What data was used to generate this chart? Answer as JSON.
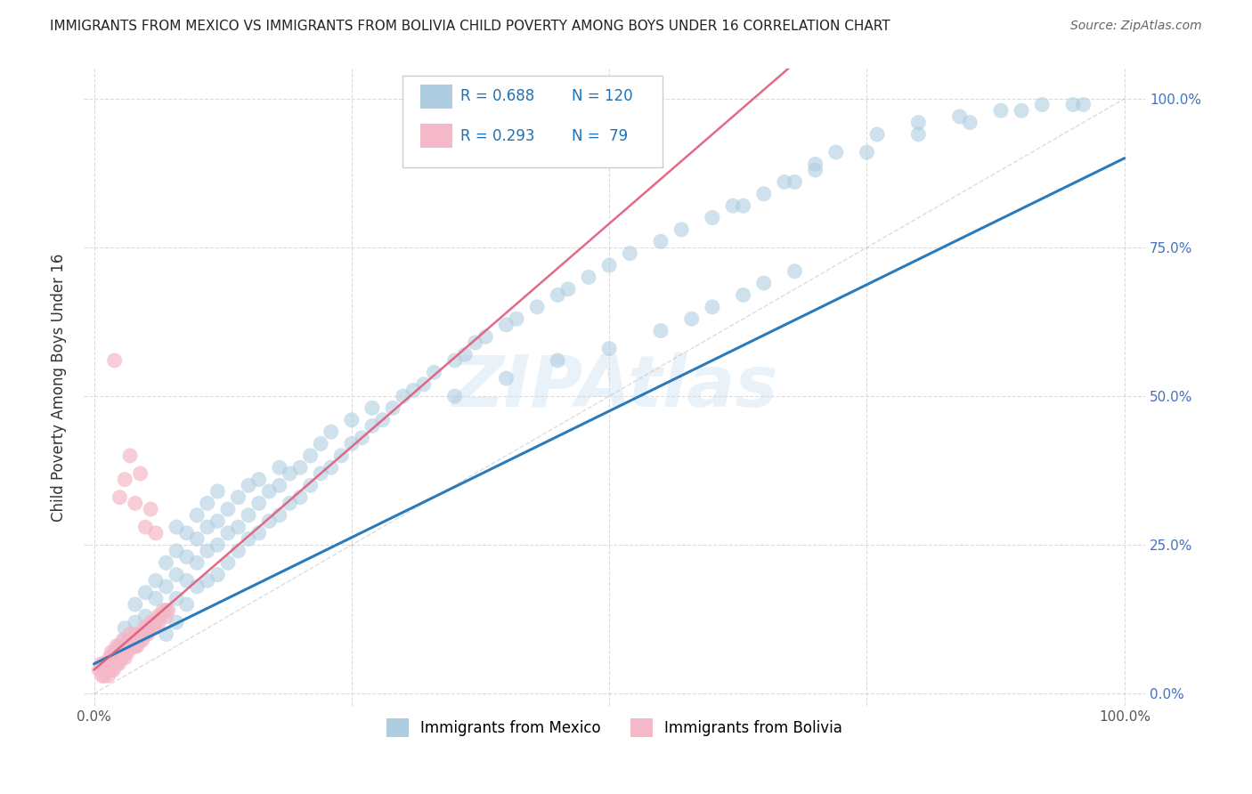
{
  "title": "IMMIGRANTS FROM MEXICO VS IMMIGRANTS FROM BOLIVIA CHILD POVERTY AMONG BOYS UNDER 16 CORRELATION CHART",
  "source": "Source: ZipAtlas.com",
  "ylabel": "Child Poverty Among Boys Under 16",
  "watermark": "ZIPAtlas",
  "mexico_R": 0.688,
  "mexico_N": 120,
  "bolivia_R": 0.293,
  "bolivia_N": 79,
  "mexico_color": "#aecde0",
  "bolivia_color": "#f4b8c8",
  "mexico_line_color": "#2b7bba",
  "bolivia_line_color": "#e05a7a",
  "grid_color": "#cccccc",
  "background_color": "#ffffff",
  "mexico_scatter_x": [
    0.02,
    0.03,
    0.03,
    0.04,
    0.04,
    0.04,
    0.05,
    0.05,
    0.05,
    0.06,
    0.06,
    0.06,
    0.07,
    0.07,
    0.07,
    0.07,
    0.08,
    0.08,
    0.08,
    0.08,
    0.08,
    0.09,
    0.09,
    0.09,
    0.09,
    0.1,
    0.1,
    0.1,
    0.1,
    0.11,
    0.11,
    0.11,
    0.11,
    0.12,
    0.12,
    0.12,
    0.12,
    0.13,
    0.13,
    0.13,
    0.14,
    0.14,
    0.14,
    0.15,
    0.15,
    0.15,
    0.16,
    0.16,
    0.16,
    0.17,
    0.17,
    0.18,
    0.18,
    0.18,
    0.19,
    0.19,
    0.2,
    0.2,
    0.21,
    0.21,
    0.22,
    0.22,
    0.23,
    0.23,
    0.24,
    0.25,
    0.25,
    0.26,
    0.27,
    0.27,
    0.28,
    0.29,
    0.3,
    0.31,
    0.32,
    0.33,
    0.35,
    0.36,
    0.37,
    0.38,
    0.4,
    0.41,
    0.43,
    0.45,
    0.46,
    0.48,
    0.5,
    0.52,
    0.55,
    0.57,
    0.6,
    0.63,
    0.65,
    0.68,
    0.7,
    0.75,
    0.8,
    0.85,
    0.9,
    0.95,
    0.62,
    0.67,
    0.7,
    0.72,
    0.76,
    0.8,
    0.84,
    0.88,
    0.92,
    0.96,
    0.35,
    0.4,
    0.45,
    0.5,
    0.55,
    0.58,
    0.6,
    0.63,
    0.65,
    0.68
  ],
  "mexico_scatter_y": [
    0.07,
    0.09,
    0.11,
    0.08,
    0.12,
    0.15,
    0.1,
    0.13,
    0.17,
    0.12,
    0.16,
    0.19,
    0.1,
    0.14,
    0.18,
    0.22,
    0.12,
    0.16,
    0.2,
    0.24,
    0.28,
    0.15,
    0.19,
    0.23,
    0.27,
    0.18,
    0.22,
    0.26,
    0.3,
    0.19,
    0.24,
    0.28,
    0.32,
    0.2,
    0.25,
    0.29,
    0.34,
    0.22,
    0.27,
    0.31,
    0.24,
    0.28,
    0.33,
    0.26,
    0.3,
    0.35,
    0.27,
    0.32,
    0.36,
    0.29,
    0.34,
    0.3,
    0.35,
    0.38,
    0.32,
    0.37,
    0.33,
    0.38,
    0.35,
    0.4,
    0.37,
    0.42,
    0.38,
    0.44,
    0.4,
    0.42,
    0.46,
    0.43,
    0.45,
    0.48,
    0.46,
    0.48,
    0.5,
    0.51,
    0.52,
    0.54,
    0.56,
    0.57,
    0.59,
    0.6,
    0.62,
    0.63,
    0.65,
    0.67,
    0.68,
    0.7,
    0.72,
    0.74,
    0.76,
    0.78,
    0.8,
    0.82,
    0.84,
    0.86,
    0.88,
    0.91,
    0.94,
    0.96,
    0.98,
    0.99,
    0.82,
    0.86,
    0.89,
    0.91,
    0.94,
    0.96,
    0.97,
    0.98,
    0.99,
    0.99,
    0.5,
    0.53,
    0.56,
    0.58,
    0.61,
    0.63,
    0.65,
    0.67,
    0.69,
    0.71
  ],
  "bolivia_scatter_x": [
    0.005,
    0.007,
    0.008,
    0.009,
    0.01,
    0.01,
    0.012,
    0.013,
    0.014,
    0.015,
    0.015,
    0.016,
    0.017,
    0.017,
    0.018,
    0.019,
    0.02,
    0.02,
    0.021,
    0.022,
    0.022,
    0.023,
    0.023,
    0.024,
    0.024,
    0.025,
    0.025,
    0.026,
    0.027,
    0.028,
    0.028,
    0.029,
    0.03,
    0.03,
    0.031,
    0.032,
    0.033,
    0.034,
    0.035,
    0.035,
    0.036,
    0.037,
    0.038,
    0.039,
    0.04,
    0.04,
    0.041,
    0.042,
    0.043,
    0.044,
    0.045,
    0.046,
    0.047,
    0.048,
    0.049,
    0.05,
    0.051,
    0.052,
    0.053,
    0.055,
    0.056,
    0.057,
    0.058,
    0.06,
    0.062,
    0.063,
    0.065,
    0.067,
    0.07,
    0.072,
    0.02,
    0.025,
    0.03,
    0.035,
    0.04,
    0.045,
    0.05,
    0.055,
    0.06
  ],
  "bolivia_scatter_y": [
    0.04,
    0.05,
    0.03,
    0.04,
    0.03,
    0.05,
    0.04,
    0.05,
    0.03,
    0.04,
    0.06,
    0.05,
    0.04,
    0.07,
    0.05,
    0.04,
    0.05,
    0.07,
    0.06,
    0.05,
    0.08,
    0.06,
    0.07,
    0.05,
    0.08,
    0.06,
    0.07,
    0.08,
    0.06,
    0.07,
    0.09,
    0.07,
    0.06,
    0.08,
    0.07,
    0.08,
    0.07,
    0.09,
    0.08,
    0.1,
    0.08,
    0.09,
    0.08,
    0.09,
    0.08,
    0.1,
    0.09,
    0.08,
    0.09,
    0.1,
    0.09,
    0.1,
    0.09,
    0.1,
    0.11,
    0.1,
    0.11,
    0.1,
    0.11,
    0.12,
    0.11,
    0.12,
    0.11,
    0.12,
    0.13,
    0.12,
    0.13,
    0.14,
    0.13,
    0.14,
    0.56,
    0.33,
    0.36,
    0.4,
    0.32,
    0.37,
    0.28,
    0.31,
    0.27
  ],
  "ytick_labels_right": [
    "0.0%",
    "25.0%",
    "50.0%",
    "75.0%",
    "100.0%"
  ],
  "ytick_values": [
    0.0,
    0.25,
    0.5,
    0.75,
    1.0
  ],
  "xtick_labels": [
    "0.0%",
    "",
    "",
    "",
    "100.0%"
  ],
  "xtick_values": [
    0.0,
    0.25,
    0.5,
    0.75,
    1.0
  ],
  "xlim": [
    -0.01,
    1.02
  ],
  "ylim": [
    -0.02,
    1.05
  ]
}
